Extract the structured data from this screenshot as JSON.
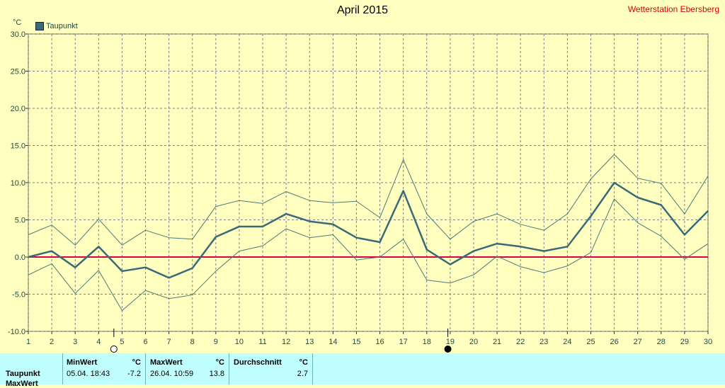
{
  "header": {
    "title": "April 2015",
    "station": "Wetterstation Ebersberg"
  },
  "legend": {
    "label": "Taupunkt",
    "color": "#3a6a78"
  },
  "unit": "°C",
  "stats": {
    "row_label": "Taupunkt",
    "row_label_2": "MaxWert",
    "min_header": "MinWert",
    "min_unit": "°C",
    "min_time": "05.04.  18:43",
    "min_value": "-7.2",
    "max_header": "MaxWert",
    "max_unit": "°C",
    "max_time": "26.04.  10:59",
    "max_value": "13.8",
    "avg_header": "Durchschnitt",
    "avg_unit": "°C",
    "avg_value": "2.7"
  },
  "chart_data": {
    "type": "line",
    "title": "April 2015",
    "x": [
      1,
      2,
      3,
      4,
      5,
      6,
      7,
      8,
      9,
      10,
      11,
      12,
      13,
      14,
      15,
      16,
      17,
      18,
      19,
      20,
      21,
      22,
      23,
      24,
      25,
      26,
      27,
      28,
      29,
      30
    ],
    "ylim": [
      -10,
      30
    ],
    "yticks": [
      "30.0",
      "25.0",
      "20.0",
      "15.0",
      "10.0",
      "5.0",
      "0.0",
      "-5.0",
      "-10.0"
    ],
    "grid": true,
    "series": [
      {
        "name": "Taupunkt",
        "role": "mean",
        "values": [
          0.0,
          0.8,
          -1.4,
          1.4,
          -1.9,
          -1.4,
          -2.8,
          -1.5,
          2.7,
          4.1,
          4.1,
          5.8,
          4.8,
          4.4,
          2.6,
          2.0,
          8.9,
          1.0,
          -1.0,
          0.8,
          1.8,
          1.4,
          0.8,
          1.4,
          5.5,
          10.0,
          8.0,
          7.0,
          3.0,
          6.2
        ]
      },
      {
        "role": "max",
        "values": [
          3.0,
          4.3,
          1.6,
          5.1,
          1.6,
          3.6,
          2.6,
          2.4,
          6.8,
          7.6,
          7.2,
          8.8,
          7.6,
          7.3,
          7.5,
          5.3,
          13.1,
          5.8,
          2.4,
          4.8,
          5.8,
          4.4,
          3.6,
          5.8,
          10.5,
          13.8,
          10.6,
          9.9,
          5.8,
          10.9
        ]
      },
      {
        "role": "min",
        "values": [
          -2.4,
          -0.9,
          -4.9,
          -1.8,
          -7.2,
          -4.5,
          -5.6,
          -5.1,
          -1.9,
          0.8,
          1.5,
          3.8,
          2.6,
          3.0,
          -0.4,
          0.0,
          2.4,
          -3.1,
          -3.5,
          -2.4,
          0.1,
          -1.3,
          -2.1,
          -1.2,
          0.6,
          7.8,
          4.6,
          2.8,
          -0.3,
          1.8
        ]
      }
    ],
    "moon_markers": [
      {
        "day": 4.65,
        "phase": "full"
      },
      {
        "day": 18.9,
        "phase": "new"
      }
    ],
    "colors": {
      "mean": "#3a6a78",
      "range": "#4a7a7a",
      "zero": "#e0004a",
      "grid": "#7f7f7f"
    }
  }
}
